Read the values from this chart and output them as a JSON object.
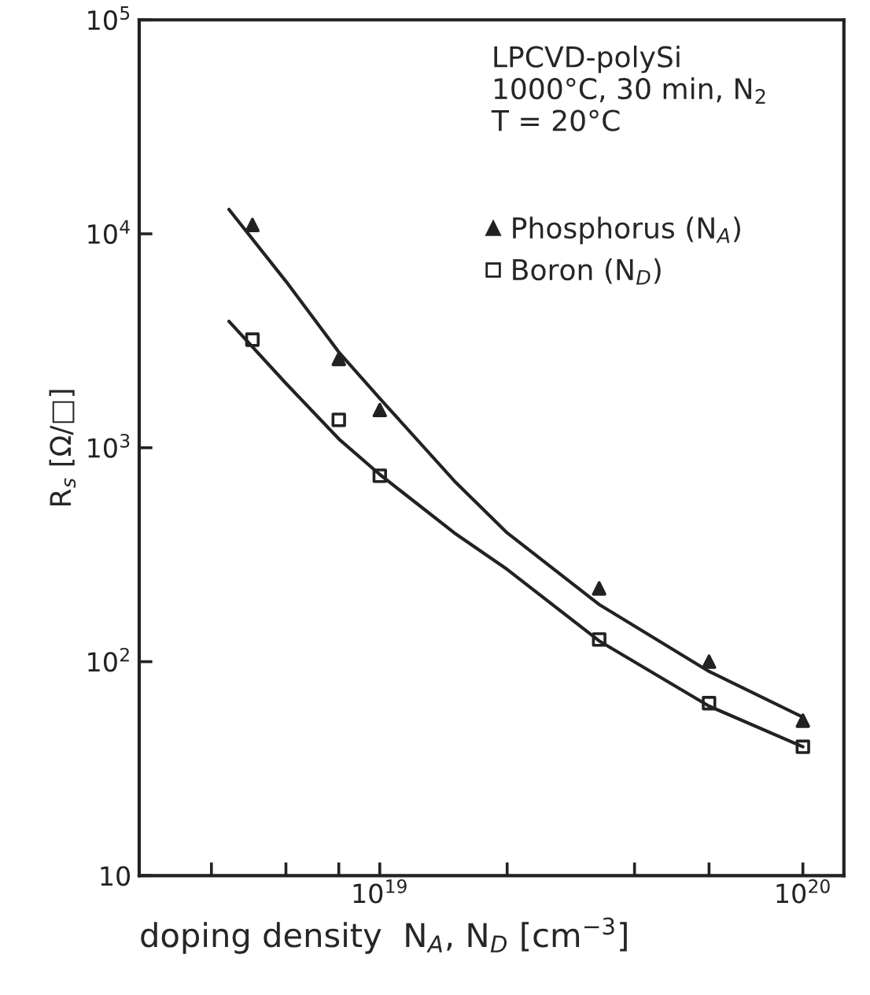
{
  "chart_data": {
    "type": "scatter",
    "xlabel": "doping density  N$_{A}$, N$_{D}$ [cm$^{−3}$]",
    "ylabel": "R$_{s}$ [Ω/□]",
    "log": "xy",
    "grid": false,
    "legend": "top right",
    "xlim": [
      2.7e+18,
      1.25e+20
    ],
    "ylim": [
      10,
      100000
    ],
    "xticks": [
      {
        "value": 4e+18,
        "label": null
      },
      {
        "value": 6e+18,
        "label": null
      },
      {
        "value": 8e+18,
        "label": null
      },
      {
        "value": 1e+19,
        "label": "10$^{19}$"
      },
      {
        "value": 2e+19,
        "label": null
      },
      {
        "value": 4e+19,
        "label": null
      },
      {
        "value": 6e+19,
        "label": null
      },
      {
        "value": 1e+20,
        "label": "10$^{20}$"
      }
    ],
    "yticks": [
      {
        "value": 10,
        "label": "10"
      },
      {
        "value": 100,
        "label": "10$^{2}$"
      },
      {
        "value": 1000,
        "label": "10$^{3}$"
      },
      {
        "value": 10000,
        "label": "10$^{4}$"
      },
      {
        "value": 100000,
        "label": "10$^{5}$"
      }
    ],
    "annotations": [
      "LPCVD-polySi\n1000°C, 30 min, N$_{2}$\nT = 20°C"
    ],
    "series": [
      {
        "name": "Phosphorus (N$_{A}$)",
        "marker": "triangle",
        "color": "#222222",
        "x": [
          5e+18,
          8e+18,
          1e+19,
          3.3e+19,
          6e+19,
          1e+20
        ],
        "values": [
          11000,
          2600,
          1500,
          220,
          100,
          53
        ]
      },
      {
        "name": "Boron (N$_{D}$)",
        "marker": "square",
        "color": "#222222",
        "x": [
          5e+18,
          8e+18,
          1e+19,
          3.3e+19,
          6e+19,
          1e+20
        ],
        "values": [
          3200,
          1350,
          740,
          127,
          64,
          40
        ]
      },
      {
        "type": "line",
        "marker": "none",
        "line_style": "solid",
        "color": "#222222",
        "x": [
          4.4e+18,
          6e+18,
          8e+18,
          1e+19,
          1.5e+19,
          2e+19,
          3.3e+19,
          6e+19,
          1e+20
        ],
        "values": [
          13000,
          6000,
          2800,
          1700,
          700,
          400,
          185,
          90,
          55
        ]
      },
      {
        "type": "line",
        "marker": "none",
        "line_style": "solid",
        "color": "#222222",
        "x": [
          4.4e+18,
          6e+18,
          8e+18,
          1e+19,
          1.5e+19,
          2e+19,
          3.3e+19,
          6e+19,
          1e+20
        ],
        "values": [
          3900,
          2000,
          1100,
          750,
          400,
          270,
          125,
          62,
          40
        ]
      }
    ]
  }
}
